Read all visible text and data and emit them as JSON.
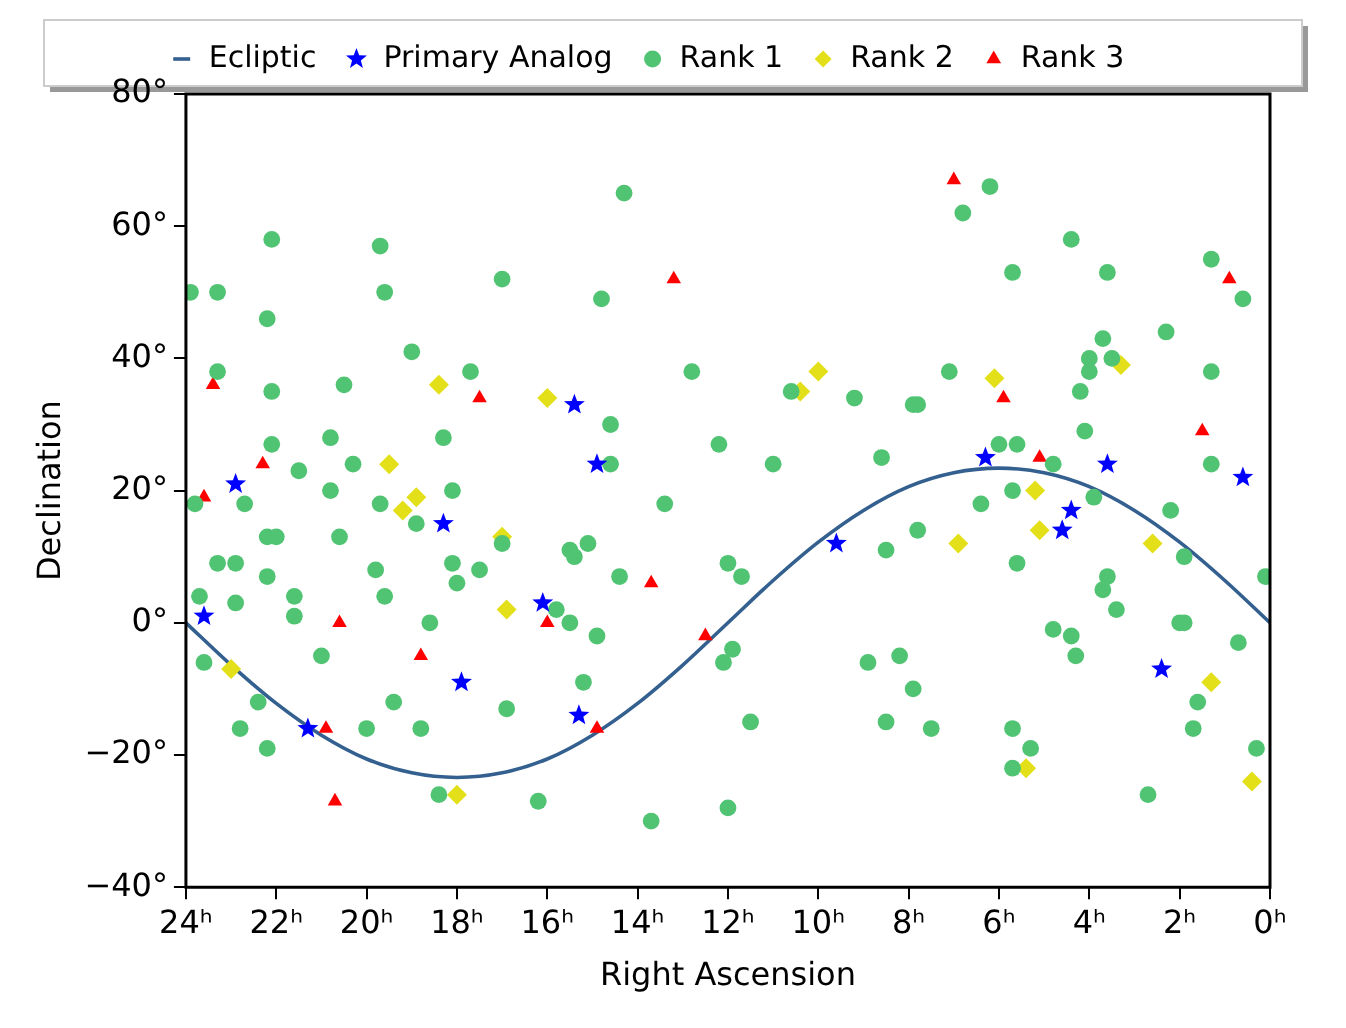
{
  "chart_data": {
    "type": "scatter",
    "xlabel": "Right Ascension",
    "ylabel": "Declination",
    "legend": "top",
    "xlim": [
      24,
      0
    ],
    "xticks": [
      {
        "value": 24,
        "label": "24ʰ"
      },
      {
        "value": 22,
        "label": "22ʰ"
      },
      {
        "value": 20,
        "label": "20ʰ"
      },
      {
        "value": 18,
        "label": "18ʰ"
      },
      {
        "value": 16,
        "label": "16ʰ"
      },
      {
        "value": 14,
        "label": "14ʰ"
      },
      {
        "value": 12,
        "label": "12ʰ"
      },
      {
        "value": 10,
        "label": "10ʰ"
      },
      {
        "value": 8,
        "label": "8ʰ"
      },
      {
        "value": 6,
        "label": "6ʰ"
      },
      {
        "value": 4,
        "label": "4ʰ"
      },
      {
        "value": 2,
        "label": "2ʰ"
      },
      {
        "value": 0,
        "label": "0ʰ"
      }
    ],
    "ylim": [
      -40,
      80
    ],
    "yticks": [
      {
        "value": -40,
        "label": "−40°"
      },
      {
        "value": -20,
        "label": "−20°"
      },
      {
        "value": 0,
        "label": "0°"
      },
      {
        "value": 20,
        "label": "20°"
      },
      {
        "value": 40,
        "label": "40°"
      },
      {
        "value": 60,
        "label": "60°"
      },
      {
        "value": 80,
        "label": "80°"
      }
    ],
    "series": [
      {
        "name": "Ecliptic",
        "type": "line",
        "marker": "none",
        "color": "#34608f",
        "x": [
          0,
          1,
          2,
          3,
          4,
          5,
          6,
          7,
          8,
          9,
          10,
          11,
          12,
          13,
          14,
          15,
          16,
          17,
          18,
          19,
          20,
          21,
          22,
          23,
          24
        ],
        "values": [
          0,
          6.4,
          12.2,
          17.0,
          20.6,
          22.7,
          23.4,
          22.7,
          20.6,
          17.0,
          12.2,
          6.4,
          0,
          -6.4,
          -12.2,
          -17.0,
          -20.6,
          -22.7,
          -23.4,
          -22.7,
          -20.6,
          -17.0,
          -12.2,
          -6.4,
          0
        ]
      },
      {
        "name": "Primary Analog",
        "marker": "star",
        "color": "#0000ff",
        "x": [
          23.6,
          22.9,
          21.3,
          18.3,
          17.9,
          16.1,
          15.4,
          14.9,
          15.3,
          9.6,
          6.3,
          3.6,
          0.6,
          4.4,
          4.6,
          2.4
        ],
        "values": [
          1,
          21,
          -16,
          15,
          -9,
          3,
          33,
          24,
          -14,
          12,
          25,
          24,
          22,
          17,
          14,
          -7
        ]
      },
      {
        "name": "Rank 1",
        "marker": "circle",
        "color": "#50c473",
        "x": [
          23.9,
          23.3,
          22.1,
          22.2,
          23.3,
          22.1,
          22.1,
          23.8,
          22.7,
          22.2,
          22.0,
          23.3,
          22.9,
          22.2,
          23.7,
          22.9,
          21.6,
          21.6,
          23.6,
          21.0,
          22.4,
          22.8,
          22.2,
          20.0,
          18.8,
          19.4,
          18.4,
          16.2,
          19.7,
          19.6,
          17.0,
          19.0,
          17.7,
          20.5,
          20.8,
          18.3,
          20.3,
          21.5,
          20.8,
          19.7,
          18.1,
          18.9,
          20.6,
          17.0,
          19.8,
          18.1,
          18.0,
          17.5,
          19.6,
          18.6,
          16.9,
          14.3,
          14.8,
          12.8,
          14.6,
          14.6,
          12.2,
          11.0,
          13.4,
          10.6,
          9.2,
          7.9,
          8.6,
          15.1,
          15.5,
          15.4,
          14.4,
          12.0,
          11.7,
          8.5,
          15.8,
          15.5,
          14.9,
          11.9,
          12.1,
          15.2,
          11.5,
          8.9,
          8.2,
          7.9,
          8.5,
          13.7,
          12.0,
          6.2,
          6.8,
          4.4,
          5.7,
          3.6,
          1.3,
          0.6,
          2.3,
          3.7,
          4.0,
          4.0,
          3.5,
          1.3,
          7.1,
          7.8,
          4.2,
          4.1,
          6.0,
          5.6,
          4.8,
          5.7,
          6.4,
          3.9,
          1.3,
          2.2,
          7.8,
          5.6,
          1.9,
          0.1,
          3.6,
          3.7,
          3.4,
          4.8,
          4.4,
          4.3,
          2.0,
          1.9,
          0.7,
          1.6,
          1.7,
          7.5,
          5.7,
          5.3,
          5.7,
          2.7,
          0.3
        ],
        "values": [
          50,
          50,
          58,
          46,
          38,
          35,
          27,
          18,
          18,
          13,
          13,
          9,
          9,
          7,
          4,
          3,
          4,
          1,
          -6,
          -5,
          -12,
          -16,
          -19,
          -16,
          -16,
          -12,
          -26,
          -27,
          57,
          50,
          52,
          41,
          38,
          36,
          28,
          28,
          24,
          23,
          20,
          18,
          20,
          15,
          13,
          12,
          8,
          9,
          6,
          8,
          4,
          0,
          -13,
          65,
          49,
          38,
          30,
          24,
          27,
          24,
          18,
          35,
          34,
          33,
          25,
          12,
          11,
          10,
          7,
          9,
          7,
          11,
          2,
          0,
          -2,
          -4,
          -6,
          -9,
          -15,
          -6,
          -5,
          -10,
          -15,
          -30,
          -28,
          66,
          62,
          58,
          53,
          53,
          55,
          49,
          44,
          43,
          40,
          38,
          40,
          38,
          38,
          33,
          35,
          29,
          27,
          27,
          24,
          20,
          18,
          19,
          24,
          17,
          14,
          9,
          10,
          7,
          7,
          5,
          2,
          -1,
          -2,
          -5,
          0,
          0,
          -3,
          -12,
          -16,
          -16,
          -16,
          -19,
          -22,
          -26,
          -19
        ]
      },
      {
        "name": "Rank 2",
        "marker": "diamond",
        "color": "#e3e01a",
        "x": [
          23.0,
          19.5,
          18.9,
          19.2,
          18.4,
          17.0,
          16.9,
          18.0,
          16.0,
          10.0,
          10.4,
          6.1,
          3.3,
          5.2,
          5.1,
          6.9,
          2.6,
          1.3,
          5.4,
          0.4
        ],
        "values": [
          -7,
          24,
          19,
          17,
          36,
          13,
          2,
          -26,
          34,
          38,
          35,
          37,
          39,
          20,
          14,
          12,
          12,
          -9,
          -22,
          -24
        ]
      },
      {
        "name": "Rank 3",
        "marker": "triangle",
        "color": "#ff0000",
        "x": [
          23.4,
          23.6,
          22.3,
          20.6,
          18.8,
          20.9,
          20.7,
          17.5,
          16.0,
          13.2,
          13.7,
          12.5,
          14.9,
          7.0,
          5.9,
          5.1,
          1.5,
          0.9
        ],
        "values": [
          36,
          19,
          24,
          0,
          -5,
          -16,
          -27,
          34,
          0,
          52,
          6,
          -2,
          -16,
          67,
          34,
          25,
          29,
          52
        ]
      }
    ]
  }
}
